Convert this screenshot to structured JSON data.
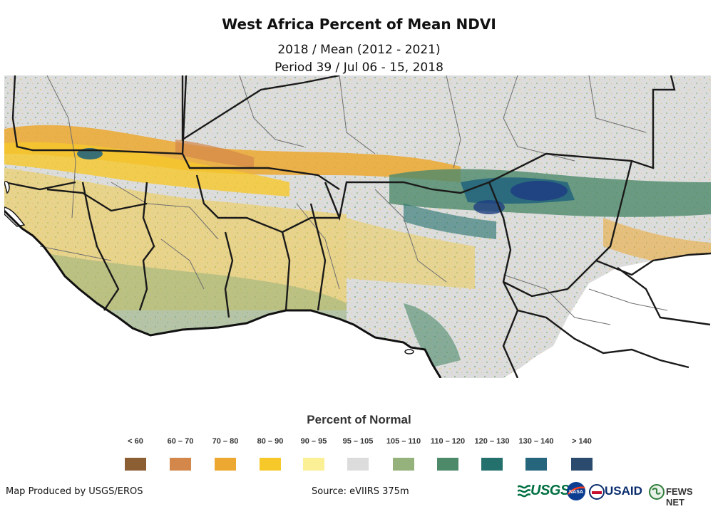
{
  "title": "West Africa Percent of Mean NDVI",
  "subtitle_line1": "2018 / Mean (2012 - 2021)",
  "subtitle_line2": "Period 39 / Jul 06 - 15, 2018",
  "legend": {
    "title": "Percent of Normal",
    "classes": [
      {
        "label": "< 60",
        "color": "#8b5e34"
      },
      {
        "label": "60 – 70",
        "color": "#d4874a"
      },
      {
        "label": "70 – 80",
        "color": "#eca830"
      },
      {
        "label": "80 – 90",
        "color": "#f6c82a"
      },
      {
        "label": "90 – 95",
        "color": "#fbf096"
      },
      {
        "label": "95 – 105",
        "color": "#dcdcdc"
      },
      {
        "label": "105 – 110",
        "color": "#95b17c"
      },
      {
        "label": "110 – 120",
        "color": "#4d8a6a"
      },
      {
        "label": "120 – 130",
        "color": "#23706c"
      },
      {
        "label": "130 – 140",
        "color": "#25667c"
      },
      {
        "label": "> 140",
        "color": "#2a4a6e"
      }
    ]
  },
  "map_colors": {
    "ocean": "#ffffff",
    "land_normal": "#dcdcdc",
    "border_country": "#1a1a1a",
    "border_admin": "#6e6e6e"
  },
  "footer": {
    "produced_by": "Map Produced by USGS/EROS",
    "source": "Source: eVIIRS 375m"
  },
  "logos": {
    "usgs": "USGS",
    "nasa": "NASA",
    "usaid": "USAID",
    "fews": "FEWS NET"
  }
}
